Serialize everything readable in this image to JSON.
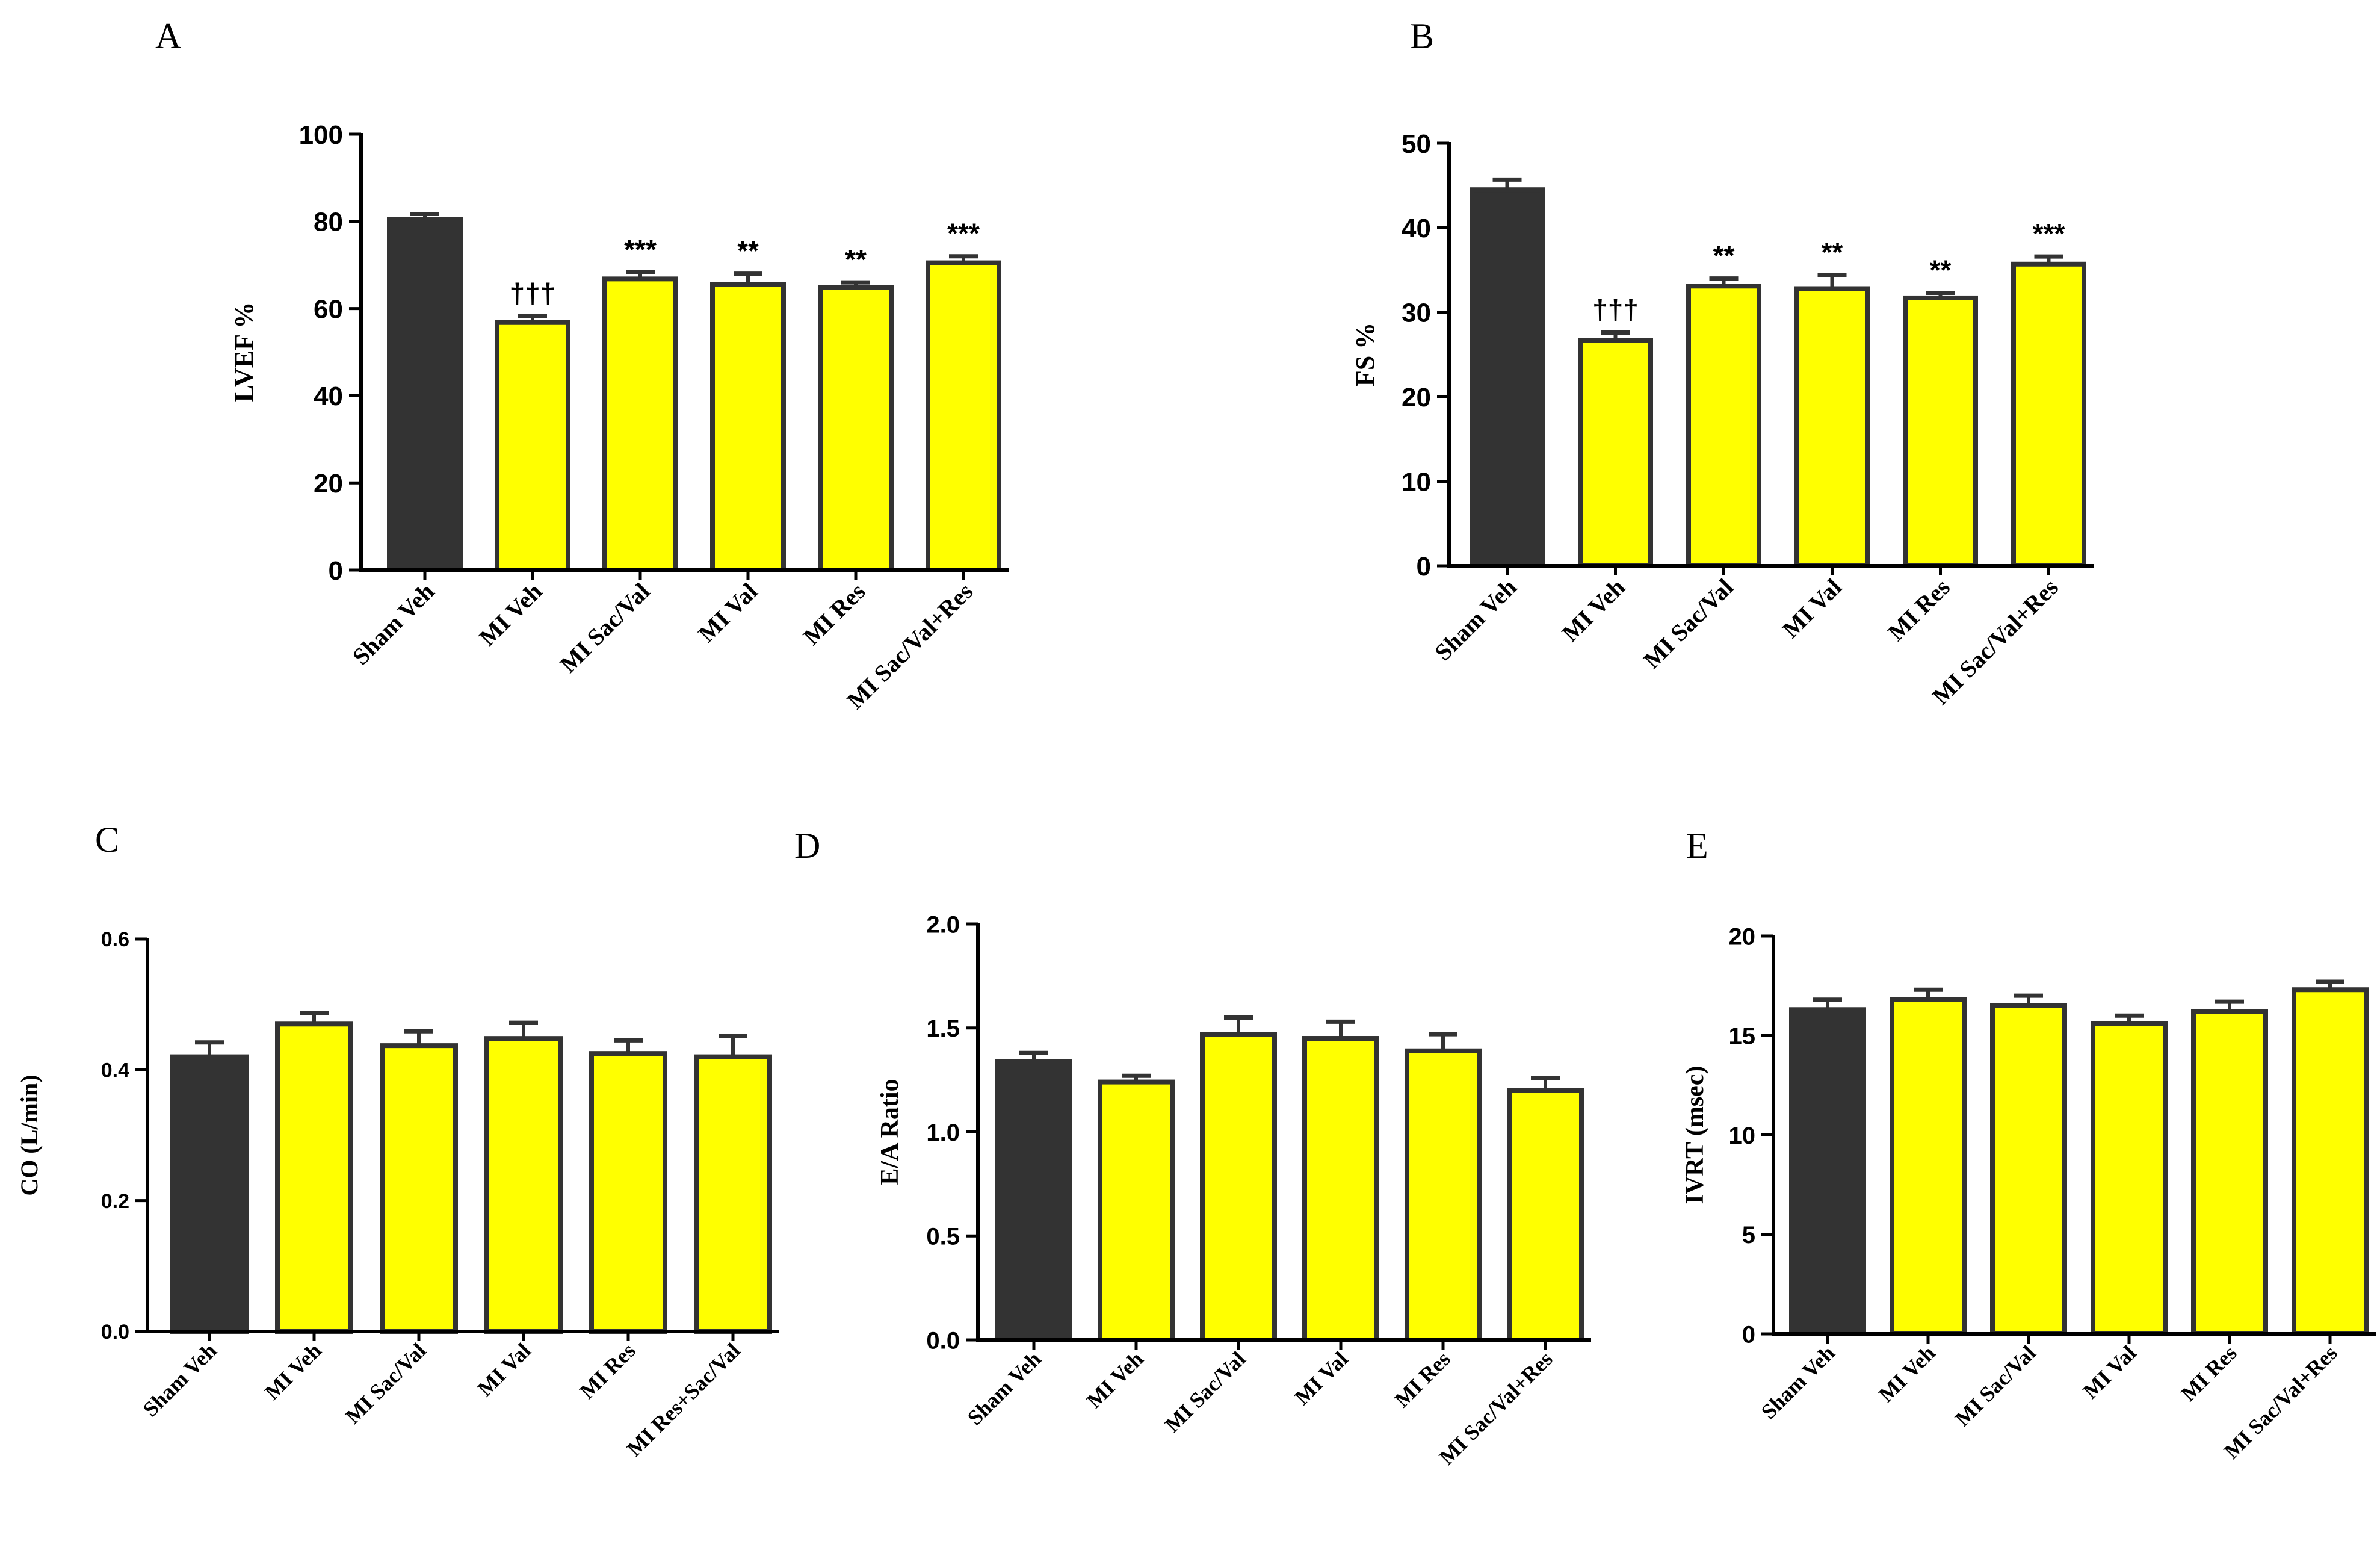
{
  "colors": {
    "sham": "#333333",
    "treatment": "#ffff00",
    "outline": "#333333",
    "axis": "#000000"
  },
  "chart_data": [
    {
      "panel": "A",
      "type": "bar",
      "ylabel": "LVEF %",
      "ylim": [
        0,
        100
      ],
      "yticks": [
        "0",
        "20",
        "40",
        "60",
        "80",
        "100"
      ],
      "ytick_values": [
        0,
        20,
        40,
        60,
        80,
        100
      ],
      "categories": [
        "Sham Veh",
        "MI Veh",
        "MI Sac/Val",
        "MI Val",
        "MI Res",
        "MI Sac/Val+Res"
      ],
      "values": [
        80.5,
        56.8,
        66.8,
        65.5,
        64.8,
        70.5
      ],
      "errors": [
        1.2,
        1.5,
        1.5,
        2.5,
        1.2,
        1.5
      ],
      "annotations": [
        "",
        "†††",
        "***",
        "**",
        "**",
        "***"
      ]
    },
    {
      "panel": "B",
      "type": "bar",
      "ylabel": "FS %",
      "ylim": [
        0,
        50
      ],
      "yticks": [
        "0",
        "10",
        "20",
        "30",
        "40",
        "50"
      ],
      "ytick_values": [
        0,
        10,
        20,
        30,
        40,
        50
      ],
      "categories": [
        "Sham Veh",
        "MI Veh",
        "MI Sac/Val",
        "MI Val",
        "MI Res",
        "MI Sac/Val+Res"
      ],
      "values": [
        44.5,
        26.7,
        33.1,
        32.8,
        31.7,
        35.7
      ],
      "errors": [
        1.2,
        0.9,
        0.9,
        1.6,
        0.6,
        0.9
      ],
      "annotations": [
        "",
        "†††",
        "**",
        "**",
        "**",
        "***"
      ]
    },
    {
      "panel": "C",
      "type": "bar",
      "ylabel": "CO (L/min)",
      "ylim": [
        0,
        0.6
      ],
      "yticks": [
        "0.0",
        "0.2",
        "0.4",
        "0.6"
      ],
      "ytick_values": [
        0,
        0.2,
        0.4,
        0.6
      ],
      "categories": [
        "Sham Veh",
        "MI Veh",
        "MI Sac/Val",
        "MI Val",
        "MI Res",
        "MI Res+Sac/Val"
      ],
      "values": [
        0.42,
        0.47,
        0.437,
        0.448,
        0.425,
        0.42
      ],
      "errors": [
        0.022,
        0.017,
        0.022,
        0.024,
        0.02,
        0.032
      ],
      "annotations": [
        "",
        "",
        "",
        "",
        "",
        ""
      ]
    },
    {
      "panel": "D",
      "type": "bar",
      "ylabel": "E/A Ratio",
      "ylim": [
        0,
        2.0
      ],
      "yticks": [
        "0.0",
        "0.5",
        "1.0",
        "1.5",
        "2.0"
      ],
      "ytick_values": [
        0,
        0.5,
        1.0,
        1.5,
        2.0
      ],
      "categories": [
        "Sham Veh",
        "MI Veh",
        "MI Sac/Val",
        "MI Val",
        "MI Res",
        "MI Sac/Val+Res"
      ],
      "values": [
        1.34,
        1.24,
        1.47,
        1.45,
        1.39,
        1.2
      ],
      "errors": [
        0.04,
        0.03,
        0.08,
        0.08,
        0.08,
        0.06
      ],
      "annotations": [
        "",
        "",
        "",
        "",
        "",
        ""
      ]
    },
    {
      "panel": "E",
      "type": "bar",
      "ylabel": "IVRT (msec)",
      "ylim": [
        0,
        20
      ],
      "yticks": [
        "0",
        "5",
        "10",
        "15",
        "20"
      ],
      "ytick_values": [
        0,
        5,
        10,
        15,
        20
      ],
      "categories": [
        "Sham Veh",
        "MI Veh",
        "MI Sac/Val",
        "MI Val",
        "MI Res",
        "MI Sac/Val+Res"
      ],
      "values": [
        16.3,
        16.8,
        16.5,
        15.6,
        16.2,
        17.3
      ],
      "errors": [
        0.5,
        0.5,
        0.5,
        0.4,
        0.5,
        0.4
      ],
      "annotations": [
        "",
        "",
        "",
        "",
        "",
        ""
      ]
    }
  ]
}
